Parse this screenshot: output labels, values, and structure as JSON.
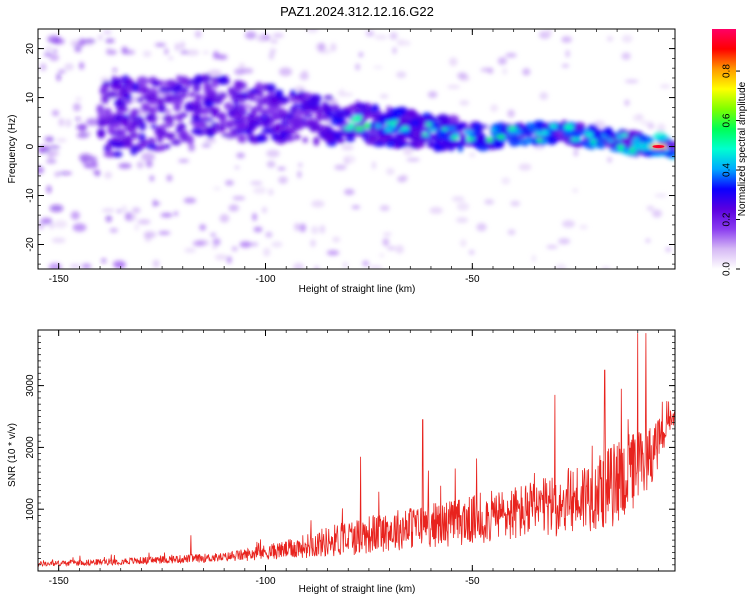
{
  "title": "PAZ1.2024.312.12.16.G22",
  "chart_data": [
    {
      "type": "heatmap",
      "xlabel": "Height of straight line (km)",
      "ylabel": "Frequency (Hz)",
      "xlim": [
        -155,
        -1
      ],
      "ylim": [
        -25,
        24
      ],
      "xticks": [
        "-150",
        "-100",
        "-50"
      ],
      "yticks": [
        "20",
        "10",
        "0",
        "-10",
        "-20"
      ],
      "colorbar": {
        "label": "Normalized spectral amplitude",
        "range": [
          0,
          0.97
        ],
        "ticks": [
          "0.0",
          "0.2",
          "0.4",
          "0.6",
          "0.8"
        ],
        "colors": [
          "#ffffff",
          "#d6b9f5",
          "#8a3cf0",
          "#5a00e0",
          "#0a00ff",
          "#00aaff",
          "#00ffd0",
          "#00ff55",
          "#7fff00",
          "#ffff00",
          "#ff9900",
          "#ff0000",
          "#ff0066"
        ]
      },
      "ridge": {
        "description_points": [
          {
            "x": -135,
            "y": 6
          },
          {
            "x": -110,
            "y": 8
          },
          {
            "x": -95,
            "y": 6
          },
          {
            "x": -80,
            "y": 5
          },
          {
            "x": -60,
            "y": 3
          },
          {
            "x": -45,
            "y": 2
          },
          {
            "x": -30,
            "y": 3
          },
          {
            "x": -15,
            "y": 1
          },
          {
            "x": -1,
            "y": 0
          }
        ],
        "peak": {
          "x": -5,
          "y": 0,
          "value": 0.95
        }
      }
    },
    {
      "type": "line",
      "xlabel": "Height of straight line (km)",
      "ylabel": "SNR (10 * v/v)",
      "xlim": [
        -155,
        -1
      ],
      "ylim": [
        0,
        3900
      ],
      "xticks": [
        "-150",
        "-100",
        "-50"
      ],
      "yticks": [
        "1000",
        "2000",
        "3000"
      ],
      "color": "#e8231e",
      "envelope": [
        {
          "x": -155,
          "base": 100,
          "amp": 80
        },
        {
          "x": -130,
          "base": 150,
          "amp": 120
        },
        {
          "x": -110,
          "base": 200,
          "amp": 150
        },
        {
          "x": -95,
          "base": 300,
          "amp": 300
        },
        {
          "x": -80,
          "base": 450,
          "amp": 600
        },
        {
          "x": -65,
          "base": 600,
          "amp": 700
        },
        {
          "x": -50,
          "base": 700,
          "amp": 800
        },
        {
          "x": -30,
          "base": 900,
          "amp": 1000
        },
        {
          "x": -15,
          "base": 1200,
          "amp": 1400
        },
        {
          "x": -8,
          "base": 1600,
          "amp": 1200
        },
        {
          "x": -1,
          "base": 2450,
          "amp": 200
        }
      ],
      "peaks": [
        {
          "x": -118,
          "y": 580
        },
        {
          "x": -89,
          "y": 820
        },
        {
          "x": -77,
          "y": 1850
        },
        {
          "x": -62,
          "y": 2450
        },
        {
          "x": -49,
          "y": 1820
        },
        {
          "x": -30,
          "y": 2850
        },
        {
          "x": -18,
          "y": 3250
        },
        {
          "x": -14,
          "y": 2950
        },
        {
          "x": -10,
          "y": 3850
        },
        {
          "x": -8,
          "y": 3850
        },
        {
          "x": -3,
          "y": 2750
        }
      ]
    }
  ]
}
